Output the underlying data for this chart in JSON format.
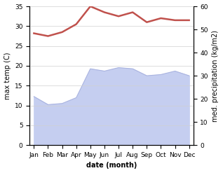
{
  "months": [
    "Jan",
    "Feb",
    "Mar",
    "Apr",
    "May",
    "Jun",
    "Jul",
    "Aug",
    "Sep",
    "Oct",
    "Nov",
    "Dec"
  ],
  "temp": [
    28.2,
    27.5,
    28.5,
    30.5,
    35.0,
    33.5,
    32.5,
    33.5,
    31.0,
    32.0,
    31.5,
    31.5
  ],
  "precip": [
    21.0,
    17.5,
    18.0,
    20.5,
    33.0,
    32.0,
    33.5,
    33.0,
    30.0,
    30.5,
    32.0,
    30.0
  ],
  "temp_color": "#c0514c",
  "precip_fill_color": "#c5cef0",
  "precip_line_color": "#aab4e0",
  "ylim_temp": [
    0,
    35
  ],
  "ylim_precip": [
    0,
    60
  ],
  "xlabel": "date (month)",
  "ylabel_left": "max temp (C)",
  "ylabel_right": "med. precipitation (kg/m2)",
  "bg_color": "#ffffff",
  "grid_color": "#d0d0d0",
  "label_fontsize": 7,
  "tick_fontsize": 6.5,
  "temp_linewidth": 1.8,
  "precip_linewidth": 0.8
}
